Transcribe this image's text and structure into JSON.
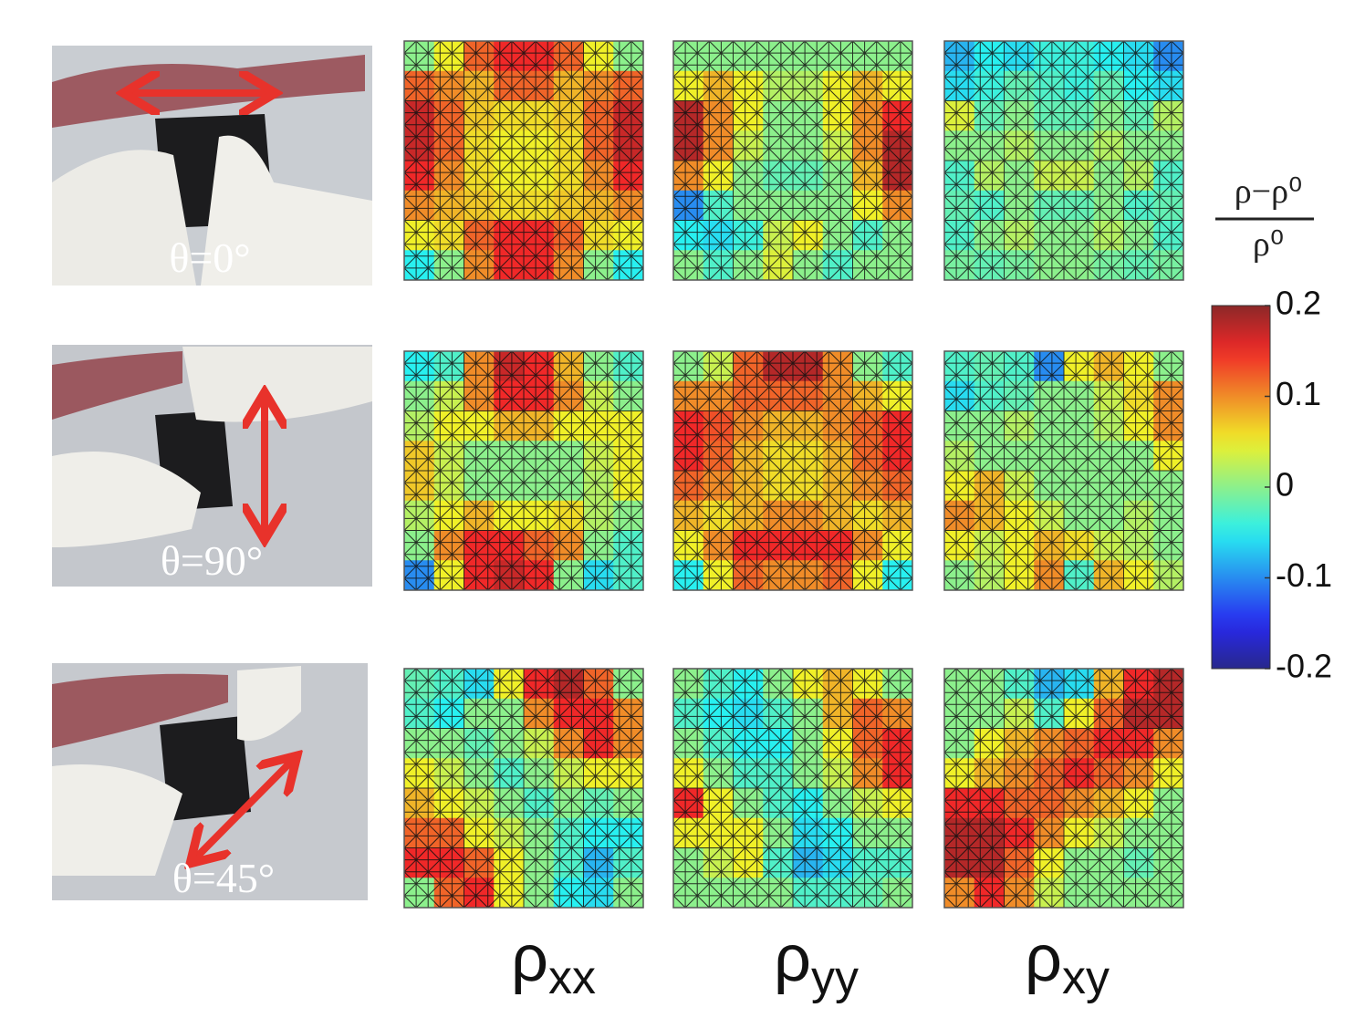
{
  "chart_data": {
    "type": "heatmap",
    "rows": [
      "θ=0°",
      "θ=90°",
      "θ=45°"
    ],
    "columns": [
      {
        "symbol": "ρ",
        "subscript": "xx"
      },
      {
        "symbol": "ρ",
        "subscript": "yy"
      },
      {
        "symbol": "ρ",
        "subscript": "xy"
      }
    ],
    "colorbar_title": {
      "numerator": "ρ−ρ⁰",
      "denominator": "ρ⁰"
    },
    "zlim": [
      -0.2,
      0.2
    ],
    "zticks": [
      0.2,
      0.1,
      0,
      -0.1,
      -0.2
    ],
    "colormap": "jet",
    "maps": [
      [
        [
          [
            0.0,
            0.05,
            0.12,
            0.15,
            0.15,
            0.12,
            0.05,
            0.0
          ],
          [
            0.12,
            0.1,
            0.08,
            0.12,
            0.12,
            0.08,
            0.1,
            0.12
          ],
          [
            0.17,
            0.12,
            0.07,
            0.06,
            0.06,
            0.07,
            0.12,
            0.17
          ],
          [
            0.17,
            0.12,
            0.06,
            0.05,
            0.05,
            0.06,
            0.12,
            0.17
          ],
          [
            0.15,
            0.1,
            0.06,
            0.05,
            0.05,
            0.06,
            0.1,
            0.15
          ],
          [
            0.1,
            0.08,
            0.07,
            0.06,
            0.06,
            0.07,
            0.08,
            0.1
          ],
          [
            0.05,
            0.06,
            0.12,
            0.15,
            0.15,
            0.12,
            0.06,
            0.05
          ],
          [
            -0.05,
            0.0,
            0.1,
            0.15,
            0.15,
            0.1,
            0.0,
            -0.05
          ]
        ],
        [
          [
            0.0,
            0.0,
            0.0,
            0.0,
            0.0,
            0.0,
            0.0,
            0.0
          ],
          [
            0.05,
            0.08,
            0.05,
            0.02,
            0.02,
            0.05,
            0.08,
            0.05
          ],
          [
            0.18,
            0.1,
            0.05,
            0.0,
            0.0,
            0.05,
            0.1,
            0.15
          ],
          [
            0.18,
            0.1,
            0.03,
            0.0,
            0.0,
            0.03,
            0.1,
            0.18
          ],
          [
            0.1,
            0.05,
            0.0,
            -0.02,
            -0.02,
            0.0,
            0.08,
            0.18
          ],
          [
            -0.1,
            -0.03,
            0.0,
            0.0,
            0.0,
            0.0,
            0.05,
            0.1
          ],
          [
            -0.05,
            -0.06,
            -0.04,
            0.03,
            0.05,
            0.0,
            -0.03,
            0.0
          ],
          [
            0.0,
            -0.03,
            0.0,
            0.04,
            0.0,
            -0.03,
            0.0,
            0.0
          ]
        ],
        [
          [
            -0.08,
            -0.05,
            -0.06,
            -0.04,
            -0.04,
            -0.05,
            -0.06,
            -0.1
          ],
          [
            -0.06,
            -0.04,
            -0.02,
            -0.03,
            -0.04,
            -0.02,
            -0.05,
            -0.06
          ],
          [
            0.04,
            -0.02,
            0.0,
            -0.02,
            -0.02,
            0.0,
            -0.02,
            0.02
          ],
          [
            0.0,
            0.0,
            0.02,
            0.0,
            0.0,
            0.02,
            0.0,
            0.0
          ],
          [
            -0.03,
            0.02,
            0.0,
            0.03,
            0.03,
            0.0,
            0.02,
            -0.03
          ],
          [
            -0.02,
            -0.03,
            0.0,
            -0.02,
            -0.02,
            0.0,
            -0.03,
            -0.02
          ],
          [
            -0.03,
            0.0,
            0.02,
            0.0,
            0.0,
            0.02,
            0.0,
            -0.03
          ],
          [
            -0.01,
            -0.02,
            -0.01,
            0.0,
            0.0,
            -0.01,
            -0.02,
            -0.01
          ]
        ]
      ],
      [
        [
          [
            -0.05,
            -0.03,
            0.1,
            0.17,
            0.15,
            0.08,
            0.0,
            -0.03
          ],
          [
            0.0,
            0.03,
            0.1,
            0.15,
            0.15,
            0.1,
            0.03,
            0.0
          ],
          [
            0.02,
            0.05,
            0.05,
            0.08,
            0.08,
            0.05,
            0.05,
            0.05
          ],
          [
            0.07,
            0.03,
            0.0,
            0.0,
            0.0,
            0.0,
            0.03,
            0.05
          ],
          [
            0.07,
            0.03,
            0.0,
            0.0,
            0.0,
            0.0,
            0.02,
            0.05
          ],
          [
            0.02,
            0.05,
            0.08,
            0.05,
            0.05,
            0.06,
            0.02,
            0.0
          ],
          [
            0.0,
            0.1,
            0.15,
            0.15,
            0.12,
            0.1,
            0.0,
            -0.03
          ],
          [
            -0.1,
            0.05,
            0.15,
            0.17,
            0.15,
            0.0,
            -0.06,
            -0.03
          ]
        ],
        [
          [
            0.0,
            0.03,
            0.12,
            0.18,
            0.18,
            0.1,
            0.0,
            -0.03
          ],
          [
            0.1,
            0.1,
            0.12,
            0.12,
            0.12,
            0.1,
            0.08,
            0.05
          ],
          [
            0.15,
            0.13,
            0.1,
            0.08,
            0.08,
            0.1,
            0.12,
            0.15
          ],
          [
            0.15,
            0.12,
            0.08,
            0.06,
            0.06,
            0.08,
            0.12,
            0.15
          ],
          [
            0.12,
            0.1,
            0.08,
            0.06,
            0.06,
            0.08,
            0.1,
            0.12
          ],
          [
            0.08,
            0.06,
            0.08,
            0.1,
            0.1,
            0.08,
            0.06,
            0.08
          ],
          [
            0.05,
            0.1,
            0.15,
            0.15,
            0.15,
            0.15,
            0.1,
            0.05
          ],
          [
            -0.05,
            0.05,
            0.12,
            0.1,
            0.1,
            0.12,
            0.05,
            -0.05
          ]
        ],
        [
          [
            -0.03,
            -0.02,
            -0.03,
            -0.1,
            0.05,
            0.08,
            0.05,
            0.0
          ],
          [
            -0.06,
            -0.03,
            -0.02,
            0.0,
            0.0,
            0.03,
            0.06,
            0.1
          ],
          [
            0.0,
            0.0,
            0.02,
            0.0,
            0.0,
            0.02,
            0.05,
            0.1
          ],
          [
            0.02,
            0.0,
            0.0,
            0.0,
            0.0,
            0.0,
            0.0,
            0.05
          ],
          [
            0.05,
            0.08,
            0.03,
            0.0,
            0.0,
            0.0,
            0.0,
            0.0
          ],
          [
            0.1,
            0.08,
            0.05,
            0.03,
            0.0,
            0.0,
            0.02,
            0.0
          ],
          [
            0.05,
            0.03,
            0.05,
            0.08,
            0.06,
            0.03,
            0.02,
            0.0
          ],
          [
            0.0,
            0.02,
            0.05,
            0.1,
            -0.03,
            0.08,
            0.05,
            0.02
          ]
        ]
      ],
      [
        [
          [
            -0.02,
            -0.03,
            -0.06,
            0.05,
            0.15,
            0.18,
            0.12,
            0.0
          ],
          [
            -0.03,
            -0.05,
            0.0,
            0.0,
            0.1,
            0.15,
            0.15,
            0.1
          ],
          [
            0.0,
            0.0,
            -0.02,
            0.0,
            0.03,
            0.1,
            0.15,
            0.1
          ],
          [
            0.05,
            0.03,
            0.0,
            -0.03,
            0.0,
            0.03,
            0.05,
            0.05
          ],
          [
            0.08,
            0.05,
            0.03,
            0.0,
            -0.03,
            0.0,
            -0.02,
            0.0
          ],
          [
            0.12,
            0.12,
            0.05,
            0.03,
            0.0,
            -0.03,
            -0.05,
            -0.05
          ],
          [
            0.15,
            0.15,
            0.12,
            0.05,
            0.0,
            -0.03,
            -0.08,
            -0.03
          ],
          [
            0.0,
            0.12,
            0.15,
            0.05,
            0.0,
            -0.05,
            -0.06,
            0.0
          ]
        ],
        [
          [
            0.0,
            -0.03,
            -0.05,
            0.0,
            0.05,
            0.08,
            0.05,
            0.0
          ],
          [
            -0.03,
            -0.05,
            -0.06,
            -0.03,
            0.0,
            0.08,
            0.12,
            0.1
          ],
          [
            0.0,
            -0.03,
            -0.05,
            -0.05,
            0.0,
            0.05,
            0.12,
            0.15
          ],
          [
            0.05,
            0.0,
            -0.03,
            -0.03,
            0.0,
            0.03,
            0.1,
            0.15
          ],
          [
            0.15,
            0.05,
            0.0,
            -0.03,
            -0.05,
            0.0,
            0.03,
            0.05
          ],
          [
            0.05,
            0.05,
            0.05,
            0.0,
            -0.06,
            -0.05,
            0.0,
            0.0
          ],
          [
            0.0,
            0.03,
            0.05,
            -0.03,
            -0.08,
            -0.06,
            -0.03,
            -0.03
          ],
          [
            0.0,
            0.0,
            0.0,
            0.0,
            -0.03,
            -0.03,
            -0.02,
            0.0
          ]
        ],
        [
          [
            0.0,
            0.0,
            -0.03,
            -0.08,
            -0.06,
            0.08,
            0.15,
            0.18
          ],
          [
            0.0,
            0.0,
            0.03,
            -0.03,
            0.05,
            0.12,
            0.18,
            0.18
          ],
          [
            0.0,
            0.05,
            0.08,
            0.1,
            0.12,
            0.15,
            0.15,
            0.1
          ],
          [
            0.05,
            0.08,
            0.1,
            0.12,
            0.15,
            0.12,
            0.1,
            0.05
          ],
          [
            0.15,
            0.15,
            0.12,
            0.12,
            0.1,
            0.08,
            0.05,
            0.0
          ],
          [
            0.18,
            0.18,
            0.15,
            0.1,
            0.05,
            0.03,
            0.0,
            0.0
          ],
          [
            0.18,
            0.18,
            0.12,
            0.05,
            0.0,
            0.0,
            -0.02,
            0.0
          ],
          [
            0.1,
            0.15,
            0.1,
            0.03,
            0.0,
            0.0,
            0.0,
            0.0
          ]
        ]
      ]
    ]
  }
}
